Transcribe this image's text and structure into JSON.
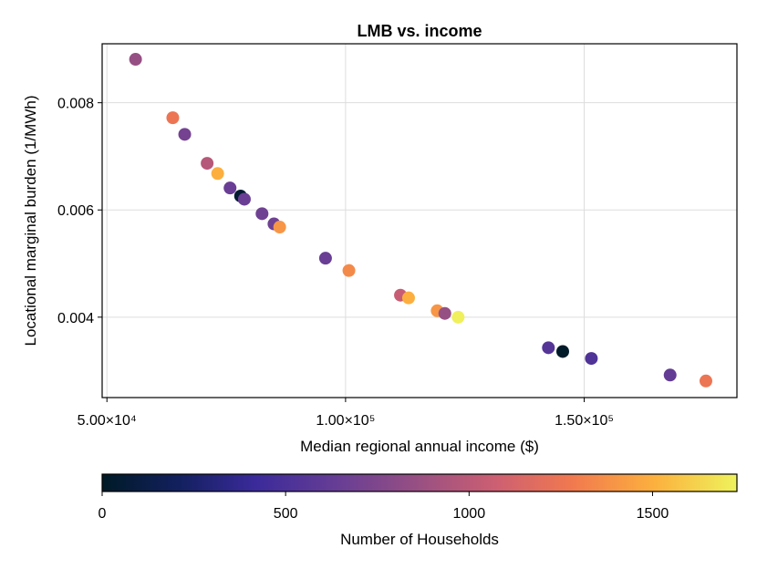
{
  "chart_data": {
    "type": "scatter",
    "title": "LMB vs. income",
    "xlabel": "Median regional annual income ($)",
    "ylabel": "Locational marginal burden (1/MWh)",
    "xlim": [
      49000,
      182000
    ],
    "ylim": [
      0.0025,
      0.0091
    ],
    "x_ticks": [
      50000,
      100000,
      150000
    ],
    "x_tick_labels": [
      "5.00×10⁴",
      "1.00×10⁵",
      "1.50×10⁵"
    ],
    "y_ticks": [
      0.004,
      0.006,
      0.008
    ],
    "y_tick_labels": [
      "0.004",
      "0.006",
      "0.008"
    ],
    "grid": true,
    "colorbar": {
      "label": "Number of Households",
      "range": [
        0,
        1730
      ],
      "ticks": [
        0,
        500,
        1000,
        1500
      ],
      "tick_labels": [
        "0",
        "500",
        "1000",
        "1500"
      ],
      "colormap": "plasma-like (dark navy → purple → pink → orange → yellow)"
    },
    "points": [
      {
        "x": 56000,
        "y": 0.00881,
        "households": 850
      },
      {
        "x": 63800,
        "y": 0.00772,
        "households": 1250
      },
      {
        "x": 66300,
        "y": 0.00741,
        "households": 700
      },
      {
        "x": 71000,
        "y": 0.00687,
        "households": 980
      },
      {
        "x": 73200,
        "y": 0.00668,
        "households": 1500
      },
      {
        "x": 75800,
        "y": 0.00641,
        "households": 650
      },
      {
        "x": 78000,
        "y": 0.00626,
        "households": 40
      },
      {
        "x": 78800,
        "y": 0.0062,
        "households": 650
      },
      {
        "x": 82500,
        "y": 0.00593,
        "households": 680
      },
      {
        "x": 85000,
        "y": 0.00574,
        "households": 680
      },
      {
        "x": 86200,
        "y": 0.00568,
        "households": 1400
      },
      {
        "x": 95800,
        "y": 0.0051,
        "households": 650
      },
      {
        "x": 100700,
        "y": 0.00487,
        "households": 1350
      },
      {
        "x": 111500,
        "y": 0.00441,
        "households": 1050
      },
      {
        "x": 113200,
        "y": 0.00436,
        "households": 1500
      },
      {
        "x": 119200,
        "y": 0.00412,
        "households": 1400
      },
      {
        "x": 120800,
        "y": 0.00407,
        "households": 850
      },
      {
        "x": 123600,
        "y": 0.004,
        "households": 1720
      },
      {
        "x": 142500,
        "y": 0.00343,
        "households": 550
      },
      {
        "x": 145500,
        "y": 0.00336,
        "households": 20
      },
      {
        "x": 151500,
        "y": 0.00323,
        "households": 520
      },
      {
        "x": 168000,
        "y": 0.00292,
        "households": 620
      },
      {
        "x": 175500,
        "y": 0.00281,
        "households": 1250
      }
    ]
  }
}
